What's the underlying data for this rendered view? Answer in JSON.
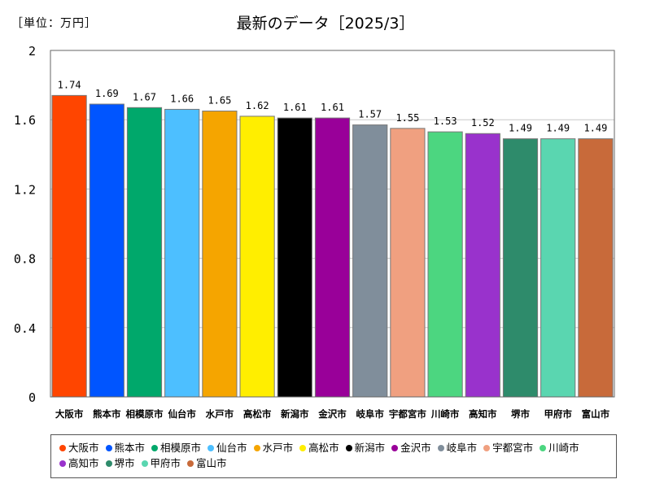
{
  "unit_label": "［単位：万円］",
  "chart_data": {
    "type": "bar",
    "title": "最新のデータ［2025/3］",
    "categories": [
      "大阪市",
      "熊本市",
      "相模原市",
      "仙台市",
      "水戸市",
      "高松市",
      "新潟市",
      "金沢市",
      "岐阜市",
      "宇都宮市",
      "川崎市",
      "高知市",
      "堺市",
      "甲府市",
      "富山市"
    ],
    "values": [
      1.74,
      1.69,
      1.67,
      1.66,
      1.65,
      1.62,
      1.61,
      1.61,
      1.57,
      1.55,
      1.53,
      1.52,
      1.49,
      1.49,
      1.49
    ],
    "value_labels": [
      "1.74",
      "1.69",
      "1.67",
      "1.66",
      "1.65",
      "1.62",
      "1.61",
      "1.61",
      "1.57",
      "1.55",
      "1.53",
      "1.52",
      "1.49",
      "1.49",
      "1.49"
    ],
    "colors": [
      "#ff4500",
      "#0055ff",
      "#00a86b",
      "#4dbfff",
      "#f5a500",
      "#ffee00",
      "#000000",
      "#990099",
      "#808e9b",
      "#f0a080",
      "#4cd680",
      "#9932cc",
      "#2e8b6b",
      "#5ad6b0",
      "#c86a3a"
    ],
    "ylim": [
      0,
      2
    ],
    "yticks": [
      0,
      0.4,
      0.8,
      1.2,
      1.6,
      2
    ],
    "ytick_labels": [
      "0",
      "0.4",
      "0.8",
      "1.2",
      "1.6",
      "2"
    ],
    "grid": true,
    "legend": "bottom"
  }
}
